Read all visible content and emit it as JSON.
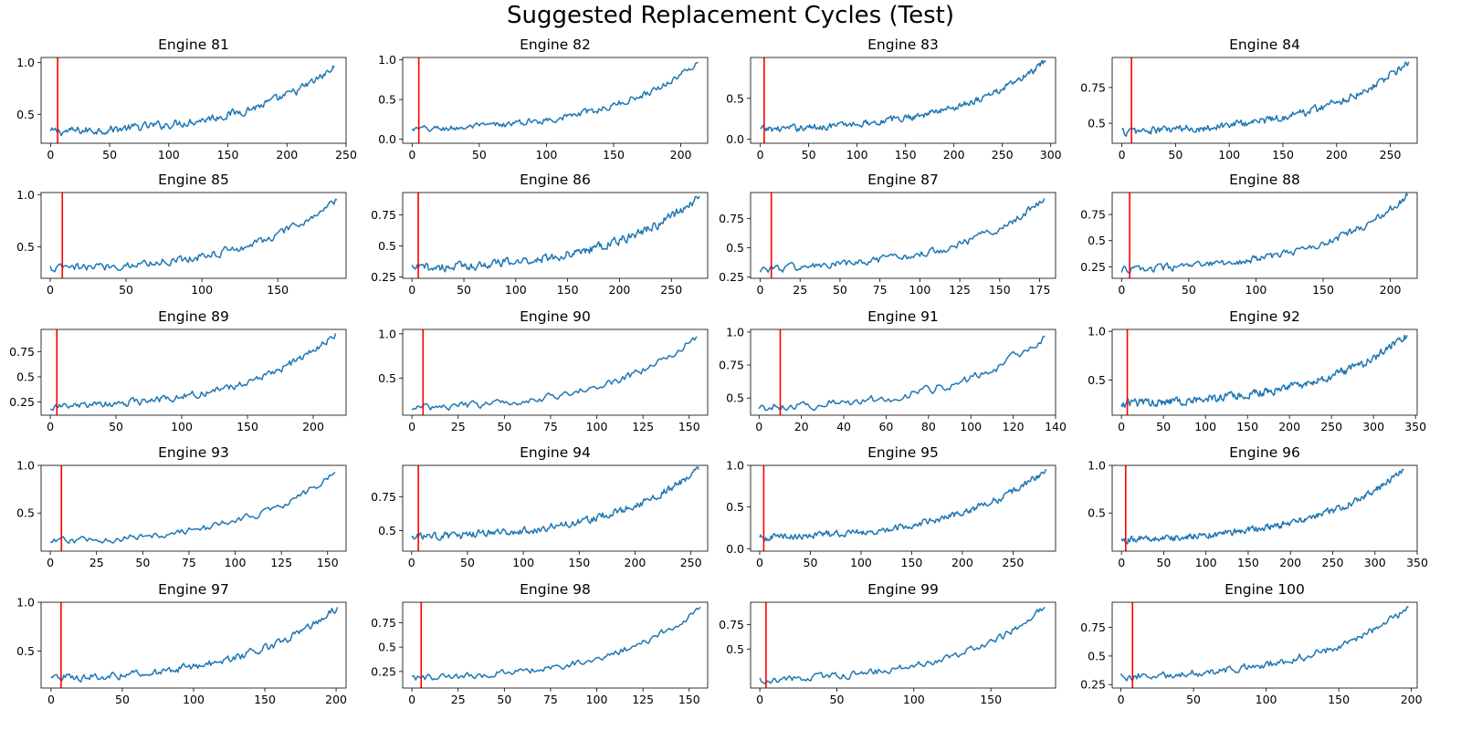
{
  "figure": {
    "title": "Suggested Replacement Cycles (Test)"
  },
  "colors": {
    "series": "#1f77b4",
    "marker_line": "#ff0000",
    "axes": "#000000"
  },
  "chart_data": [
    {
      "type": "line",
      "title": "Engine 81",
      "n_cycles": 241,
      "marker_x": 6,
      "start": 0.33,
      "end": 0.95,
      "noise": 0.035,
      "xlim": [
        -8,
        250
      ],
      "ylim": [
        0.22,
        1.05
      ],
      "xticks": [
        0,
        50,
        100,
        150,
        200,
        250
      ],
      "yticks": [
        0.5,
        1.0
      ],
      "series": [
        {
          "x_range": [
            0,
            240
          ],
          "values_shape": "noisy exponential rise"
        }
      ]
    },
    {
      "type": "line",
      "title": "Engine 82",
      "n_cycles": 214,
      "marker_x": 5,
      "start": 0.12,
      "end": 0.97,
      "noise": 0.035,
      "xlim": [
        -7,
        220
      ],
      "ylim": [
        -0.05,
        1.03
      ],
      "xticks": [
        0,
        50,
        100,
        150,
        200
      ],
      "yticks": [
        0.0,
        0.5,
        1.0
      ],
      "series": [
        {
          "x_range": [
            0,
            213
          ],
          "values_shape": "noisy exponential rise"
        }
      ]
    },
    {
      "type": "line",
      "title": "Engine 83",
      "n_cycles": 296,
      "marker_x": 4,
      "start": 0.12,
      "end": 0.95,
      "noise": 0.035,
      "xlim": [
        -10,
        305
      ],
      "ylim": [
        -0.05,
        1.0
      ],
      "xticks": [
        0,
        50,
        100,
        150,
        200,
        250,
        300
      ],
      "yticks": [
        0.0,
        0.5
      ],
      "series": [
        {
          "x_range": [
            0,
            295
          ],
          "values_shape": "noisy exponential rise"
        }
      ]
    },
    {
      "type": "line",
      "title": "Engine 84",
      "n_cycles": 268,
      "marker_x": 9,
      "start": 0.44,
      "end": 0.93,
      "noise": 0.025,
      "xlim": [
        -9,
        275
      ],
      "ylim": [
        0.36,
        0.96
      ],
      "xticks": [
        0,
        50,
        100,
        150,
        200,
        250
      ],
      "yticks": [
        0.5,
        0.75
      ],
      "series": [
        {
          "x_range": [
            0,
            267
          ],
          "values_shape": "noisy exponential rise"
        }
      ]
    },
    {
      "type": "line",
      "title": "Engine 85",
      "n_cycles": 190,
      "marker_x": 8,
      "start": 0.29,
      "end": 0.95,
      "noise": 0.035,
      "xlim": [
        -6,
        195
      ],
      "ylim": [
        0.2,
        1.02
      ],
      "xticks": [
        0,
        50,
        100,
        150
      ],
      "yticks": [
        0.5,
        1.0
      ],
      "series": [
        {
          "x_range": [
            0,
            189
          ],
          "values_shape": "noisy exponential rise"
        }
      ]
    },
    {
      "type": "line",
      "title": "Engine 86",
      "n_cycles": 278,
      "marker_x": 6,
      "start": 0.32,
      "end": 0.9,
      "noise": 0.03,
      "xlim": [
        -9,
        285
      ],
      "ylim": [
        0.24,
        0.93
      ],
      "xticks": [
        0,
        50,
        100,
        150,
        200,
        250
      ],
      "yticks": [
        0.25,
        0.5,
        0.75
      ],
      "series": [
        {
          "x_range": [
            0,
            277
          ],
          "values_shape": "noisy exponential rise"
        }
      ]
    },
    {
      "type": "line",
      "title": "Engine 87",
      "n_cycles": 179,
      "marker_x": 7,
      "start": 0.32,
      "end": 0.92,
      "noise": 0.03,
      "xlim": [
        -6,
        185
      ],
      "ylim": [
        0.24,
        0.97
      ],
      "xticks": [
        0,
        25,
        50,
        75,
        100,
        125,
        150,
        175
      ],
      "yticks": [
        0.25,
        0.5,
        0.75
      ],
      "series": [
        {
          "x_range": [
            0,
            178
          ],
          "values_shape": "noisy exponential rise"
        }
      ]
    },
    {
      "type": "line",
      "title": "Engine 88",
      "n_cycles": 214,
      "marker_x": 6,
      "start": 0.22,
      "end": 0.93,
      "noise": 0.03,
      "xlim": [
        -7,
        220
      ],
      "ylim": [
        0.14,
        0.96
      ],
      "xticks": [
        0,
        50,
        100,
        150,
        200
      ],
      "yticks": [
        0.25,
        0.5,
        0.75
      ],
      "series": [
        {
          "x_range": [
            0,
            213
          ],
          "values_shape": "noisy exponential rise"
        }
      ]
    },
    {
      "type": "line",
      "title": "Engine 89",
      "n_cycles": 218,
      "marker_x": 5,
      "start": 0.2,
      "end": 0.93,
      "noise": 0.03,
      "xlim": [
        -7,
        225
      ],
      "ylim": [
        0.12,
        0.97
      ],
      "xticks": [
        0,
        50,
        100,
        150,
        200
      ],
      "yticks": [
        0.25,
        0.5,
        0.75
      ],
      "series": [
        {
          "x_range": [
            0,
            217
          ],
          "values_shape": "noisy exponential rise"
        }
      ]
    },
    {
      "type": "line",
      "title": "Engine 90",
      "n_cycles": 155,
      "marker_x": 6,
      "start": 0.16,
      "end": 0.97,
      "noise": 0.035,
      "xlim": [
        -5,
        160
      ],
      "ylim": [
        0.08,
        1.05
      ],
      "xticks": [
        0,
        25,
        50,
        75,
        100,
        125,
        150
      ],
      "yticks": [
        0.5,
        1.0
      ],
      "series": [
        {
          "x_range": [
            0,
            154
          ],
          "values_shape": "noisy exponential rise"
        }
      ]
    },
    {
      "type": "line",
      "title": "Engine 91",
      "n_cycles": 136,
      "marker_x": 10,
      "start": 0.43,
      "end": 0.97,
      "noise": 0.03,
      "xlim": [
        -4,
        140
      ],
      "ylim": [
        0.37,
        1.02
      ],
      "xticks": [
        0,
        20,
        40,
        60,
        80,
        100,
        120,
        140
      ],
      "yticks": [
        0.5,
        0.75,
        1.0
      ],
      "series": [
        {
          "x_range": [
            0,
            135
          ],
          "values_shape": "noisy exponential rise"
        }
      ]
    },
    {
      "type": "line",
      "title": "Engine 92",
      "n_cycles": 341,
      "marker_x": 7,
      "start": 0.26,
      "end": 0.96,
      "noise": 0.035,
      "xlim": [
        -11,
        352
      ],
      "ylim": [
        0.14,
        1.02
      ],
      "xticks": [
        0,
        50,
        100,
        150,
        200,
        250,
        300,
        350
      ],
      "yticks": [
        0.5,
        1.0
      ],
      "series": [
        {
          "x_range": [
            0,
            340
          ],
          "values_shape": "noisy exponential rise"
        }
      ]
    },
    {
      "type": "line",
      "title": "Engine 93",
      "n_cycles": 155,
      "marker_x": 6,
      "start": 0.2,
      "end": 0.93,
      "noise": 0.03,
      "xlim": [
        -5,
        160
      ],
      "ylim": [
        0.1,
        1.0
      ],
      "xticks": [
        0,
        25,
        50,
        75,
        100,
        125,
        150
      ],
      "yticks": [
        0.5,
        1.0
      ],
      "series": [
        {
          "x_range": [
            0,
            154
          ],
          "values_shape": "noisy exponential rise"
        }
      ]
    },
    {
      "type": "line",
      "title": "Engine 94",
      "n_cycles": 258,
      "marker_x": 6,
      "start": 0.45,
      "end": 0.95,
      "noise": 0.025,
      "xlim": [
        -8,
        265
      ],
      "ylim": [
        0.35,
        0.98
      ],
      "xticks": [
        0,
        50,
        100,
        150,
        200,
        250
      ],
      "yticks": [
        0.5,
        0.75
      ],
      "series": [
        {
          "x_range": [
            0,
            257
          ],
          "values_shape": "noisy exponential rise"
        }
      ]
    },
    {
      "type": "line",
      "title": "Engine 95",
      "n_cycles": 284,
      "marker_x": 4,
      "start": 0.13,
      "end": 0.95,
      "noise": 0.035,
      "xlim": [
        -9,
        292
      ],
      "ylim": [
        -0.03,
        1.0
      ],
      "xticks": [
        0,
        50,
        100,
        150,
        200,
        250
      ],
      "yticks": [
        0.0,
        0.5,
        1.0
      ],
      "series": [
        {
          "x_range": [
            0,
            283
          ],
          "values_shape": "noisy exponential rise"
        }
      ]
    },
    {
      "type": "line",
      "title": "Engine 96",
      "n_cycles": 335,
      "marker_x": 5,
      "start": 0.22,
      "end": 0.95,
      "noise": 0.03,
      "xlim": [
        -11,
        350
      ],
      "ylim": [
        0.1,
        1.0
      ],
      "xticks": [
        0,
        50,
        100,
        150,
        200,
        250,
        300,
        350
      ],
      "yticks": [
        0.5,
        1.0
      ],
      "series": [
        {
          "x_range": [
            0,
            334
          ],
          "values_shape": "noisy exponential rise"
        }
      ]
    },
    {
      "type": "line",
      "title": "Engine 97",
      "n_cycles": 202,
      "marker_x": 7,
      "start": 0.22,
      "end": 0.95,
      "noise": 0.035,
      "xlim": [
        -7,
        207
      ],
      "ylim": [
        0.12,
        1.0
      ],
      "xticks": [
        0,
        50,
        100,
        150,
        200
      ],
      "yticks": [
        0.5,
        1.0
      ],
      "series": [
        {
          "x_range": [
            0,
            201
          ],
          "values_shape": "noisy exponential rise"
        }
      ]
    },
    {
      "type": "line",
      "title": "Engine 98",
      "n_cycles": 157,
      "marker_x": 5,
      "start": 0.18,
      "end": 0.91,
      "noise": 0.03,
      "xlim": [
        -5,
        160
      ],
      "ylim": [
        0.08,
        0.96
      ],
      "xticks": [
        0,
        25,
        50,
        75,
        100,
        125,
        150
      ],
      "yticks": [
        0.25,
        0.5,
        0.75
      ],
      "series": [
        {
          "x_range": [
            0,
            156
          ],
          "values_shape": "noisy exponential rise"
        }
      ]
    },
    {
      "type": "line",
      "title": "Engine 99",
      "n_cycles": 186,
      "marker_x": 4,
      "start": 0.18,
      "end": 0.93,
      "noise": 0.03,
      "xlim": [
        -6,
        192
      ],
      "ylim": [
        0.1,
        0.98
      ],
      "xticks": [
        0,
        50,
        100,
        150
      ],
      "yticks": [
        0.5,
        0.75
      ],
      "series": [
        {
          "x_range": [
            0,
            185
          ],
          "values_shape": "noisy exponential rise"
        }
      ]
    },
    {
      "type": "line",
      "title": "Engine 100",
      "n_cycles": 199,
      "marker_x": 8,
      "start": 0.32,
      "end": 0.93,
      "noise": 0.03,
      "xlim": [
        -6,
        204
      ],
      "ylim": [
        0.22,
        0.97
      ],
      "xticks": [
        0,
        50,
        100,
        150,
        200
      ],
      "yticks": [
        0.25,
        0.5,
        0.75
      ],
      "series": [
        {
          "x_range": [
            0,
            198
          ],
          "values_shape": "noisy exponential rise"
        }
      ]
    }
  ]
}
